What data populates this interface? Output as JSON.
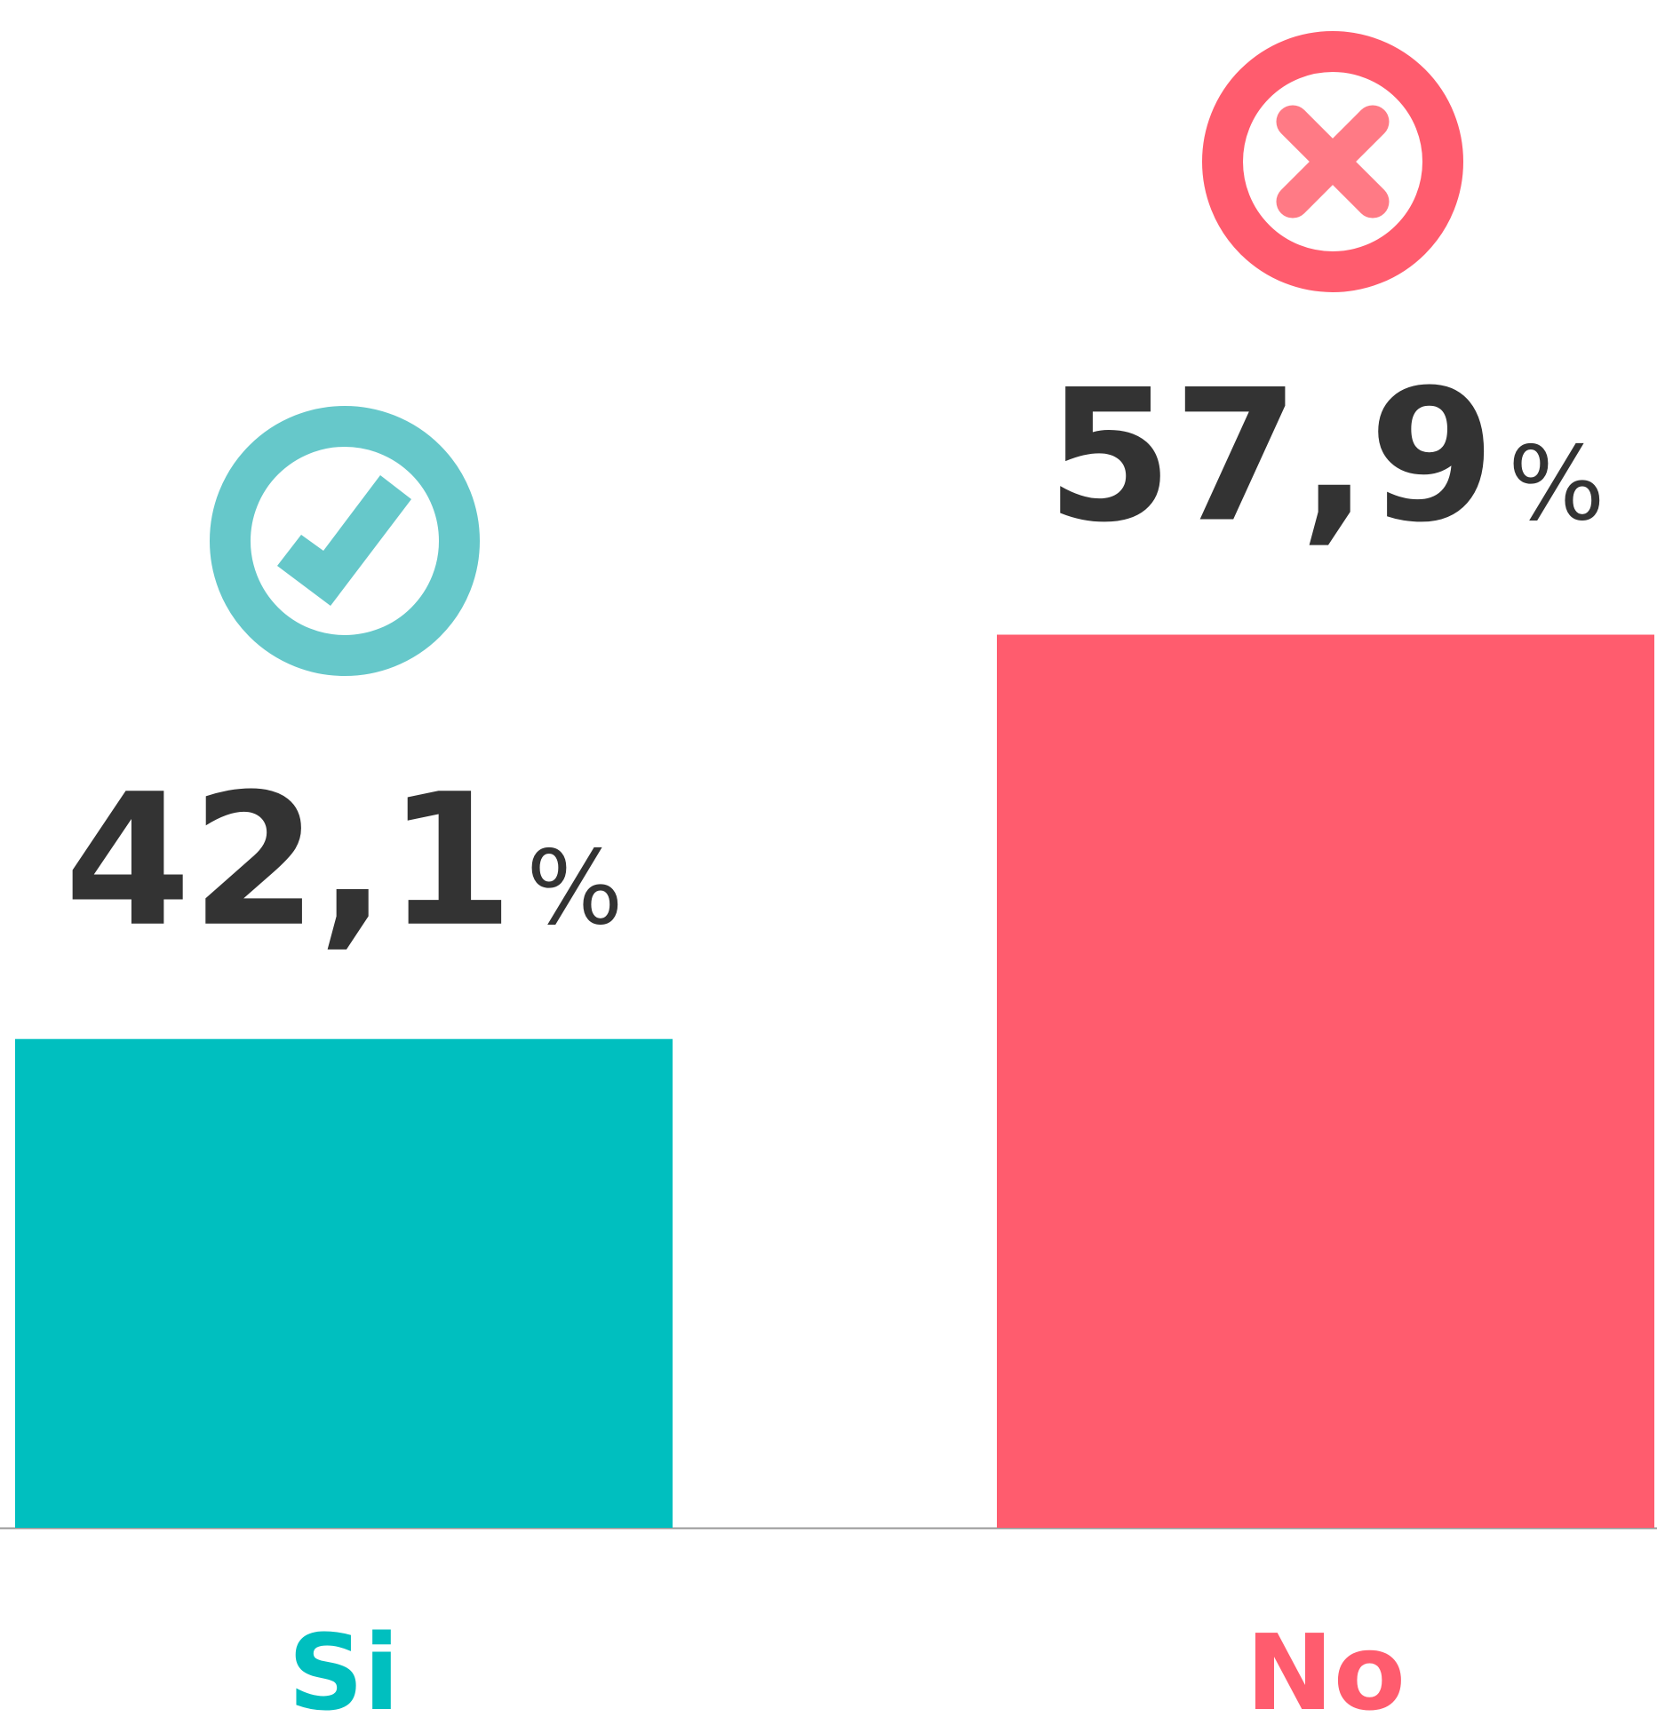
{
  "chart_data": {
    "type": "bar",
    "categories": [
      "Si",
      "No"
    ],
    "values": [
      42.1,
      57.9
    ],
    "value_labels": [
      "42,1",
      "57,9"
    ],
    "value_suffix": "%",
    "colors": [
      "#00bfbf",
      "#ff5c6e"
    ],
    "ylim": [
      23,
      82.7
    ]
  }
}
